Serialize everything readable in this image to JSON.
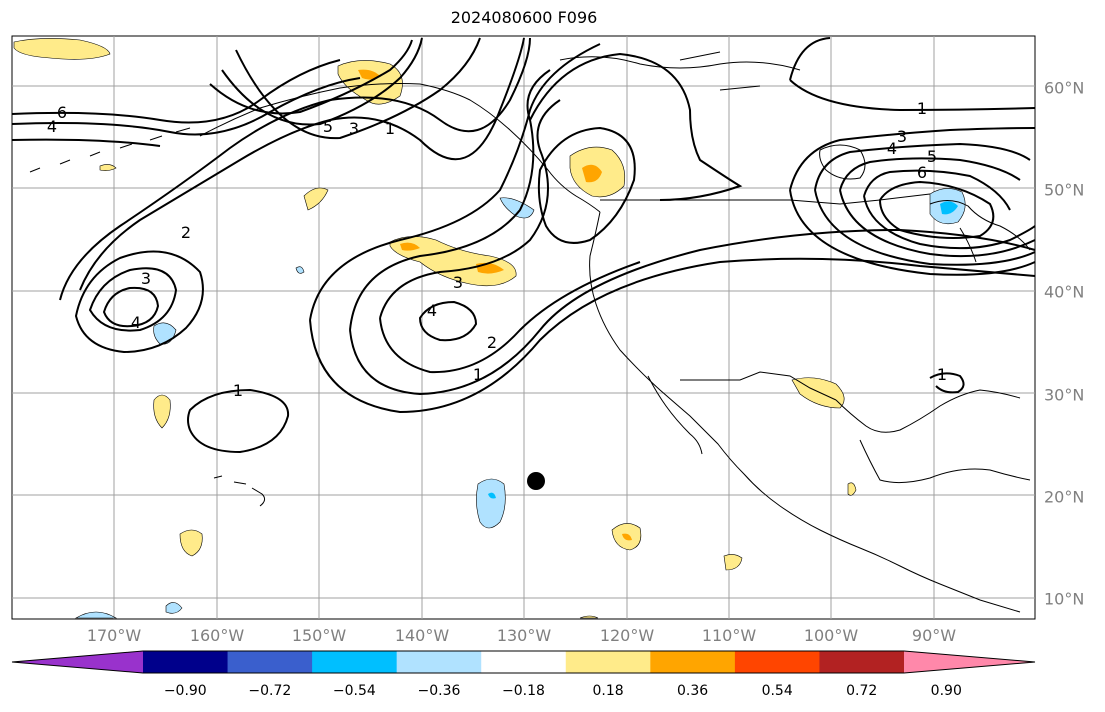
{
  "title": "2024080600 F096",
  "lon_ticks": [
    "170°W",
    "160°W",
    "150°W",
    "140°W",
    "130°W",
    "120°W",
    "110°W",
    "100°W",
    "90°W"
  ],
  "lat_ticks": [
    "60°N",
    "50°N",
    "40°N",
    "30°N",
    "20°N",
    "10°N"
  ],
  "colorbar": {
    "colors": [
      "#9932cc",
      "#00008b",
      "#3a5fcd",
      "#00bfff",
      "#b0e2ff",
      "#ffffff",
      "#ffeb8a",
      "#ffa500",
      "#ff4500",
      "#b22222",
      "#ff88aa"
    ],
    "tick_labels": [
      "−0.90",
      "−0.72",
      "−0.54",
      "−0.36",
      "−0.18",
      "0.18",
      "0.36",
      "0.54",
      "0.72",
      "0.90"
    ]
  },
  "contour_labels": [
    "6",
    "4",
    "5",
    "3",
    "1",
    "2",
    "3",
    "4",
    "1",
    "4",
    "3",
    "2",
    "1",
    "1",
    "3",
    "4",
    "5",
    "6",
    "1"
  ],
  "marker": "storm-position-dot",
  "colors": {
    "contour": "#000000",
    "grid": "#a0a0a0",
    "coast": "#000000",
    "tick_text": "#808080"
  }
}
